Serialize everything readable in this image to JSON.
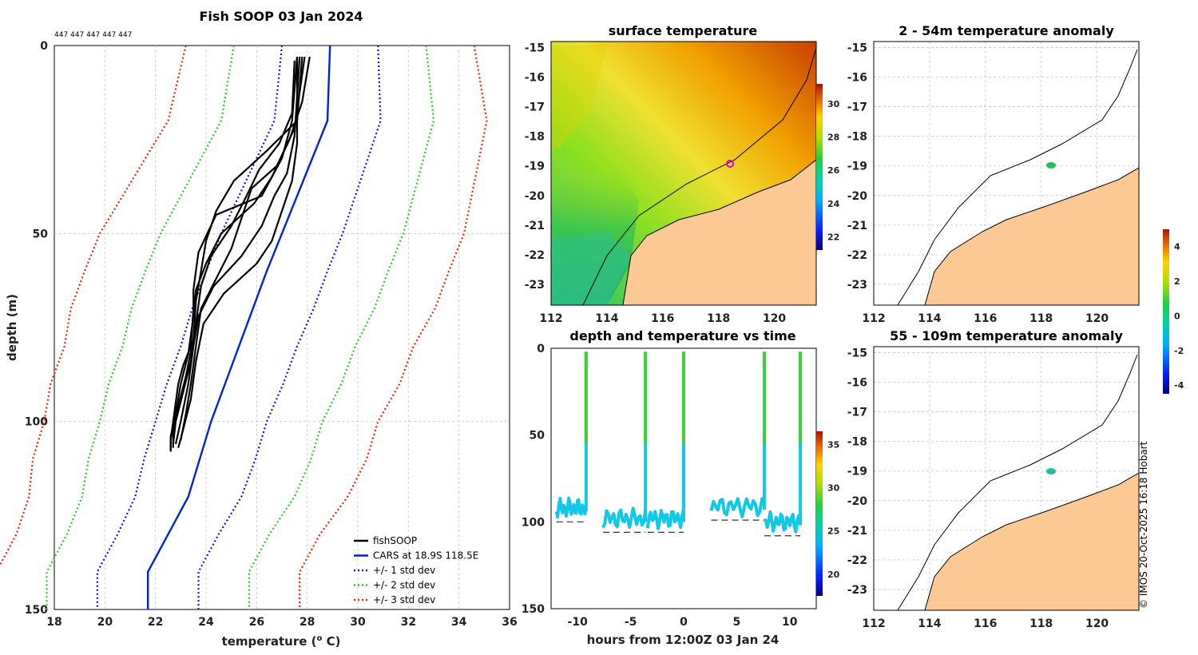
{
  "title": "Fish SOOP 03 Jan 2024",
  "profile_ids": "447 447 447 447 447",
  "credit": "© IMOS 20-Oct-2025 16:18 Hobart",
  "chart_data": [
    {
      "id": "profile",
      "type": "line",
      "xlabel": "temperature (°C)",
      "ylabel": "depth (m)",
      "xlim": [
        18,
        36
      ],
      "ylim": [
        150,
        0
      ],
      "xticks": [
        "18",
        "20",
        "22",
        "24",
        "26",
        "28",
        "30",
        "32",
        "34",
        "36"
      ],
      "yticks": [
        "0",
        "50",
        "100",
        "150"
      ],
      "legend": {
        "position": "bottom-right",
        "entries": [
          {
            "label": "fishSOOP",
            "color": "#000000",
            "style": "solid"
          },
          {
            "label": "CARS at 18.9S 118.5E",
            "color": "#0022dd",
            "style": "solid"
          },
          {
            "label": "+/- 1 std dev",
            "color": "#1111dd",
            "style": "dotted"
          },
          {
            "label": "+/- 2 std dev",
            "color": "#22cc22",
            "style": "dotted"
          },
          {
            "label": "+/- 3 std dev",
            "color": "#ee2200",
            "style": "dotted"
          }
        ]
      },
      "cars": {
        "depth": [
          0,
          20,
          40,
          60,
          80,
          100,
          120,
          130,
          140,
          150
        ],
        "temp": [
          28.9,
          28.8,
          27.6,
          26.4,
          25.3,
          24.2,
          23.3,
          22.5,
          21.7,
          21.7
        ]
      },
      "std_dev": {
        "depth": [
          0,
          10,
          20,
          30,
          40,
          50,
          60,
          70,
          80,
          90,
          100,
          110,
          120,
          130,
          140,
          150
        ],
        "sd": [
          1.9,
          2.0,
          2.1,
          2.2,
          2.3,
          2.4,
          2.4,
          2.4,
          2.3,
          2.3,
          2.2,
          2.2,
          2.1,
          2.0,
          2.0,
          2.0
        ]
      },
      "fishsoop": [
        {
          "depth": [
            3,
            20,
            30,
            40,
            45,
            55,
            60,
            65,
            70,
            80,
            85,
            90,
            95,
            100,
            105,
            108
          ],
          "temp": [
            27.6,
            27.4,
            27.0,
            26.2,
            24.4,
            23.7,
            23.6,
            23.5,
            23.5,
            23.4,
            23.1,
            22.9,
            22.8,
            22.7,
            22.6,
            22.6
          ]
        },
        {
          "depth": [
            3,
            15,
            25,
            35,
            42,
            50,
            58,
            65,
            72,
            82,
            90,
            98,
            104,
            108
          ],
          "temp": [
            28.1,
            27.8,
            27.3,
            26.6,
            25.9,
            24.6,
            24.0,
            23.6,
            23.5,
            23.3,
            23.0,
            22.8,
            22.6,
            22.6
          ]
        },
        {
          "depth": [
            3,
            20,
            28,
            36,
            44,
            52,
            60,
            68,
            78,
            88,
            96,
            103,
            107
          ],
          "temp": [
            27.8,
            27.6,
            26.4,
            25.1,
            24.4,
            24.0,
            23.8,
            23.6,
            23.5,
            23.2,
            22.9,
            22.7,
            22.7
          ]
        },
        {
          "depth": [
            4,
            18,
            26,
            33,
            40,
            48,
            56,
            64,
            74,
            84,
            92,
            100,
            106
          ],
          "temp": [
            27.5,
            27.4,
            26.9,
            26.1,
            25.6,
            25.0,
            24.2,
            23.8,
            23.6,
            23.4,
            23.1,
            22.8,
            22.7
          ]
        },
        {
          "depth": [
            3,
            22,
            32,
            38,
            46,
            54,
            62,
            70,
            80,
            90,
            98,
            105
          ],
          "temp": [
            27.9,
            27.5,
            26.8,
            25.8,
            25.4,
            25.0,
            24.4,
            23.8,
            23.6,
            23.4,
            23.2,
            23.0
          ]
        },
        {
          "depth": [
            3,
            24,
            34,
            40,
            48,
            56,
            64,
            72,
            80,
            90,
            100,
            106
          ],
          "temp": [
            27.7,
            27.5,
            27.2,
            26.7,
            26.2,
            25.4,
            24.3,
            23.7,
            23.5,
            23.3,
            23.0,
            22.8
          ]
        },
        {
          "depth": [
            3,
            26,
            36,
            44,
            52,
            58,
            66,
            74,
            84,
            94,
            102,
            107
          ],
          "temp": [
            27.6,
            27.6,
            27.4,
            27.0,
            26.6,
            26.0,
            24.7,
            23.9,
            23.6,
            23.4,
            23.1,
            22.9
          ]
        }
      ]
    },
    {
      "id": "sst-map",
      "type": "heatmap",
      "title": "surface temperature",
      "xticks": [
        "112",
        "114",
        "116",
        "118",
        "120"
      ],
      "yticks": [
        "-15",
        "-16",
        "-17",
        "-18",
        "-19",
        "-20",
        "-21",
        "-22",
        "-23"
      ],
      "xlim": [
        112,
        121.5
      ],
      "ylim": [
        -23.7,
        -14.8
      ],
      "colorbar": {
        "ticks": [
          "22",
          "24",
          "26",
          "28",
          "30"
        ],
        "range": [
          21.2,
          31.2
        ]
      },
      "track_position": {
        "lon": 118.5,
        "lat": -19.0
      }
    },
    {
      "id": "depth-time",
      "type": "scatter",
      "title": "depth and temperature vs time",
      "xlabel": "hours from 12:00Z 03 Jan 24",
      "xticks": [
        "-10",
        "-5",
        "0",
        "5",
        "10"
      ],
      "yticks": [
        "0",
        "50",
        "100",
        "150"
      ],
      "xlim": [
        -12.5,
        12.5
      ],
      "ylim": [
        150,
        0
      ],
      "colorbar": {
        "ticks": [
          "20",
          "25",
          "30",
          "35"
        ],
        "range": [
          17.5,
          36.5
        ]
      },
      "deployments": [
        {
          "start": -12.0,
          "end": -9.2,
          "bottom": 100
        },
        {
          "start": -7.6,
          "end": -3.6,
          "bottom": 106
        },
        {
          "start": -3.4,
          "end": 0.0,
          "bottom": 106
        },
        {
          "start": 2.6,
          "end": 7.6,
          "bottom": 99
        },
        {
          "start": 7.6,
          "end": 11.0,
          "bottom": 108
        }
      ]
    },
    {
      "id": "anom-upper",
      "type": "heatmap",
      "title": "2 - 54m temperature anomaly",
      "xticks": [
        "112",
        "114",
        "116",
        "118",
        "120"
      ],
      "yticks": [
        "-15",
        "-16",
        "-17",
        "-18",
        "-19",
        "-20",
        "-21",
        "-22",
        "-23"
      ],
      "xlim": [
        112,
        121.5
      ],
      "ylim": [
        -23.7,
        -14.8
      ],
      "anomaly_point": {
        "lon": 118.4,
        "lat": -19.0,
        "value": -0.6
      }
    },
    {
      "id": "anom-lower",
      "type": "heatmap",
      "title": "55 - 109m temperature anomaly",
      "xticks": [
        "112",
        "114",
        "116",
        "118",
        "120"
      ],
      "yticks": [
        "-15",
        "-16",
        "-17",
        "-18",
        "-19",
        "-20",
        "-21",
        "-22",
        "-23"
      ],
      "xlim": [
        112,
        121.5
      ],
      "ylim": [
        -23.7,
        -14.8
      ],
      "anomaly_point": {
        "lon": 118.4,
        "lat": -19.0,
        "value": -1.3
      },
      "colorbar": {
        "ticks": [
          "4",
          "2",
          "0",
          "-2",
          "-4"
        ],
        "range": [
          -4.5,
          5
        ]
      }
    }
  ],
  "colors": {
    "land": "#fcc995",
    "coast": "#000000",
    "fishsoop": "#000000",
    "cars": "#0022dd",
    "sd1": "#1111dd",
    "sd2": "#22cc22",
    "sd3": "#ee2200"
  }
}
